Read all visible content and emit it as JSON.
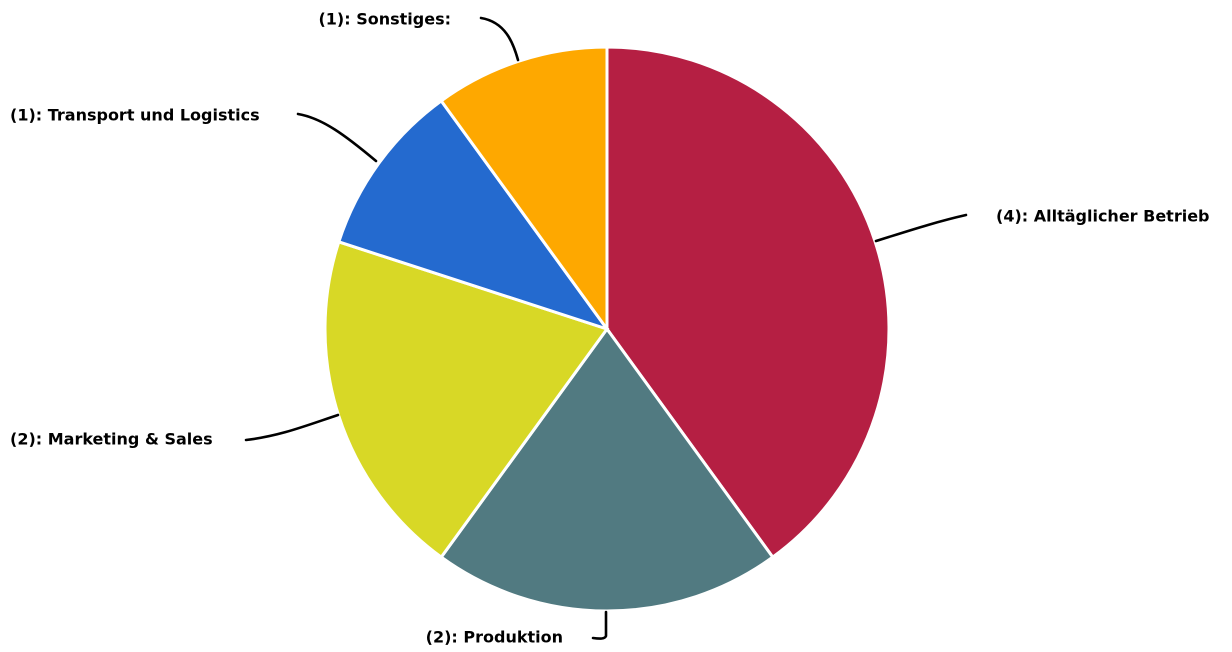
{
  "chart_data": {
    "type": "pie",
    "start": "top",
    "direction": "clockwise",
    "slices": [
      {
        "label": "(4): Alltäglicher Betrieb",
        "value": 4,
        "color": "#B51F43"
      },
      {
        "label": "(2): Produktion",
        "value": 2,
        "color": "#517A81"
      },
      {
        "label": "(2): Marketing & Sales",
        "value": 2,
        "color": "#D8D826"
      },
      {
        "label": "(1): Transport und Logistics",
        "value": 1,
        "color": "#246ACF"
      },
      {
        "label": "(1): Sonstiges:",
        "value": 1,
        "color": "#FEA800"
      }
    ]
  }
}
